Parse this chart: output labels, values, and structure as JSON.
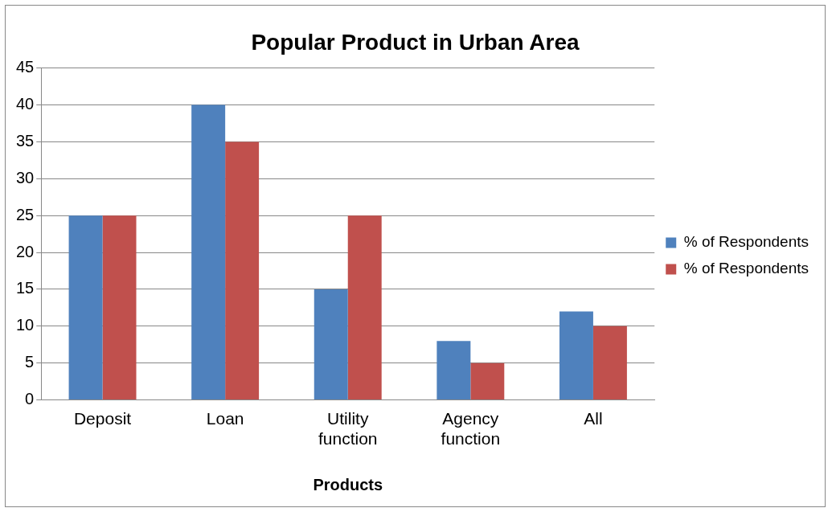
{
  "chart_data": {
    "type": "bar",
    "title": "Popular Product in Urban Area",
    "xlabel": "Products",
    "categories": [
      "Deposit",
      "Loan",
      "Utility function",
      "Agency function",
      "All"
    ],
    "series": [
      {
        "name": "% of Respondents",
        "color": "#4f81bd",
        "values": [
          25,
          40,
          15,
          8,
          12
        ]
      },
      {
        "name": "% of Respondents",
        "color": "#c0504d",
        "values": [
          25,
          35,
          25,
          5,
          10
        ]
      }
    ],
    "ylim": [
      0,
      45
    ],
    "yticks": [
      0,
      5,
      10,
      15,
      20,
      25,
      30,
      35,
      40,
      45
    ],
    "grid": "y",
    "legend": "right"
  }
}
